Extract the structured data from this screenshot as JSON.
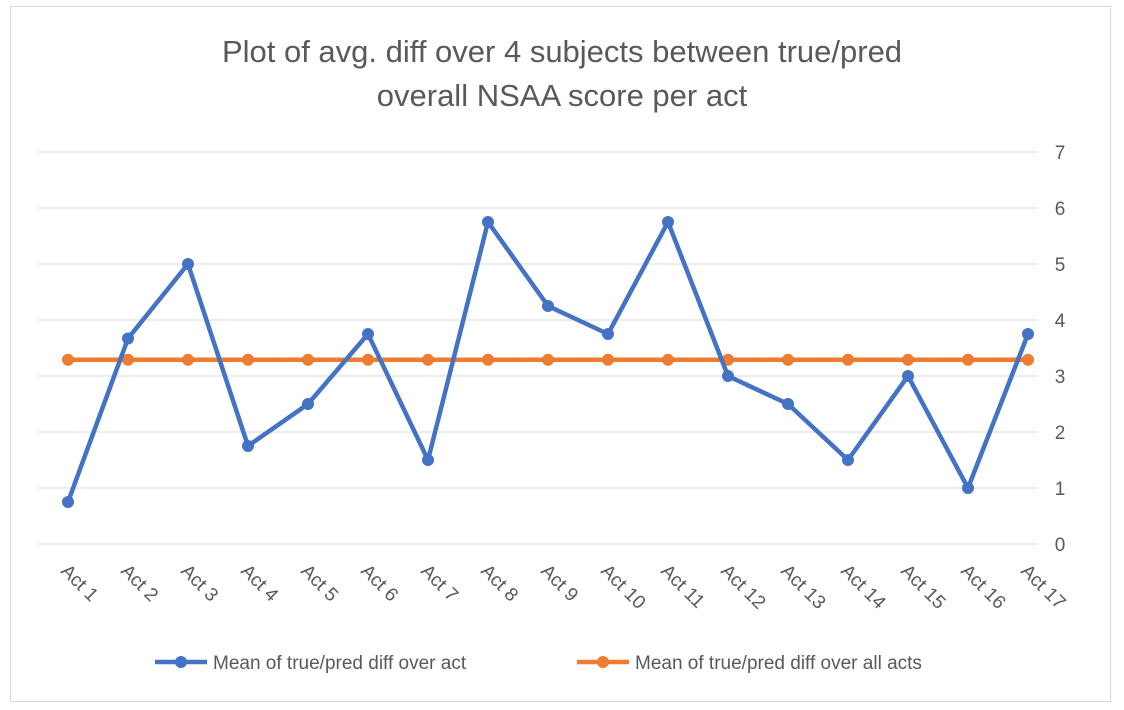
{
  "chart_data": {
    "type": "line",
    "title_lines": [
      "Plot of avg. diff over 4 subjects between true/pred",
      "overall NSAA score per act"
    ],
    "categories": [
      "Act 1",
      "Act 2",
      "Act 3",
      "Act 4",
      "Act 5",
      "Act 6",
      "Act 7",
      "Act 8",
      "Act 9",
      "Act 10",
      "Act 11",
      "Act 12",
      "Act 13",
      "Act 14",
      "Act 15",
      "Act 16",
      "Act 17"
    ],
    "series": [
      {
        "name": "Mean of true/pred diff over act",
        "color": "#4472C4",
        "values": [
          0.75,
          3.67,
          5.0,
          1.75,
          2.5,
          3.75,
          1.5,
          5.75,
          4.25,
          3.75,
          5.75,
          3.0,
          2.5,
          1.5,
          3.0,
          1.0,
          3.75
        ]
      },
      {
        "name": "Mean of true/pred diff over all acts",
        "color": "#ED7D31",
        "values": [
          3.29,
          3.29,
          3.29,
          3.29,
          3.29,
          3.29,
          3.29,
          3.29,
          3.29,
          3.29,
          3.29,
          3.29,
          3.29,
          3.29,
          3.29,
          3.29,
          3.29
        ]
      }
    ],
    "yticks": [
      "0",
      "1",
      "2",
      "3",
      "4",
      "5",
      "6",
      "7"
    ],
    "ylim": [
      0,
      7
    ],
    "y_axis_side": "right",
    "grid": true,
    "legend_position": "bottom",
    "xlabel": "",
    "ylabel": ""
  }
}
